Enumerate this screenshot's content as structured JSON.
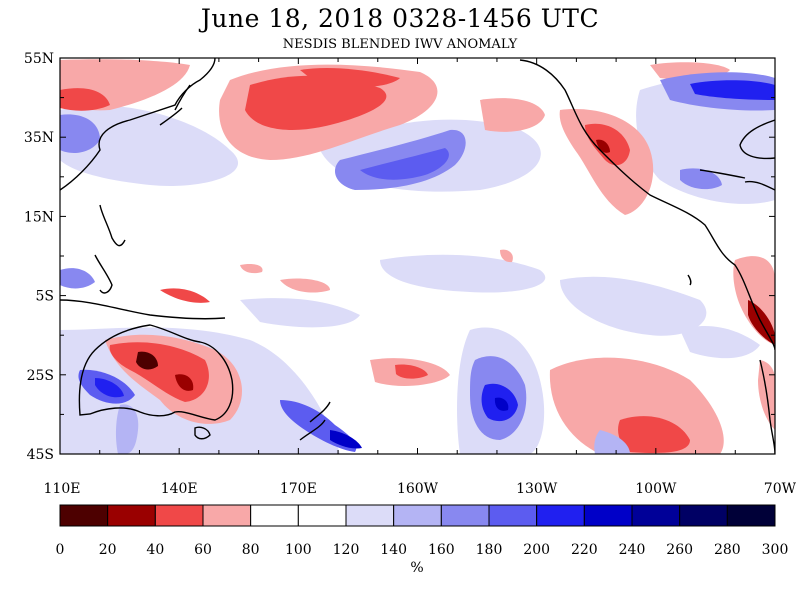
{
  "title": "June 18, 2018  0328-1456 UTC",
  "subtitle": "NESDIS BLENDED IWV ANOMALY",
  "latitude_labels": [
    "55N",
    "35N",
    "15N",
    "5S",
    "25S",
    "45S"
  ],
  "longitude_labels": [
    "110E",
    "140E",
    "170E",
    "160W",
    "130W",
    "100W",
    "70W"
  ],
  "colorbar": {
    "unit": "%",
    "ticks": [
      "0",
      "20",
      "40",
      "60",
      "80",
      "100",
      "120",
      "140",
      "160",
      "180",
      "200",
      "220",
      "240",
      "260",
      "280",
      "300"
    ],
    "colors": [
      "#4d0000",
      "#9a0000",
      "#f04848",
      "#f8a8a8",
      "#ffffff",
      "#ffffff",
      "#dcdcf8",
      "#b4b4f4",
      "#8888f0",
      "#5c5cf0",
      "#2020f0",
      "#0000c8",
      "#000098",
      "#000064",
      "#000038"
    ]
  }
}
